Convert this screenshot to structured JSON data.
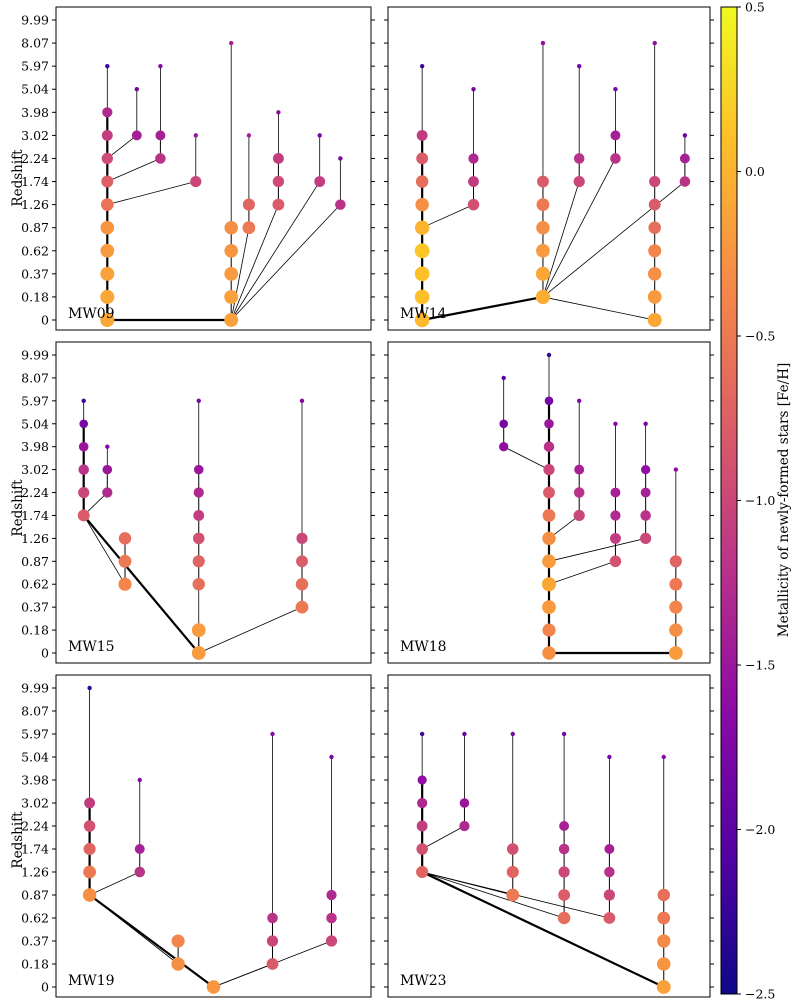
{
  "chart_data": {
    "type": "merger-tree",
    "y_axis_label": "Redshift",
    "y_ticks": [
      "9.99",
      "8.07",
      "5.97",
      "5.04",
      "3.98",
      "3.02",
      "2.24",
      "1.74",
      "1.26",
      "0.87",
      "0.62",
      "0.37",
      "0.18",
      "0"
    ],
    "colorbar": {
      "label": "Metallicity of newly-formed stars [Fe/H]",
      "ticks": [
        "0.5",
        "0.0",
        "−0.5",
        "−1.0",
        "−1.5",
        "−2.0",
        "−2.5"
      ],
      "tick_values": [
        0.5,
        0.0,
        -0.5,
        -1.0,
        -1.5,
        -2.0,
        -2.5
      ],
      "range": [
        -2.5,
        0.5
      ],
      "colormap": "plasma",
      "stops": [
        "#0d0887",
        "#5302a3",
        "#8b0aa5",
        "#b83289",
        "#db5c68",
        "#f48849",
        "#febc2a",
        "#f0f921"
      ]
    },
    "panels": [
      {
        "name": "MW09",
        "main": {
          "x": 0.14,
          "zs": [
            0.0,
            0.18,
            0.37,
            0.62,
            0.87,
            1.26,
            1.74,
            2.24,
            3.02,
            3.98
          ],
          "feh": [
            -0.1,
            -0.1,
            -0.15,
            -0.2,
            -0.25,
            -0.55,
            -0.75,
            -0.95,
            -1.1,
            -1.3
          ],
          "top": 5.97,
          "topfeh": -2.2
        },
        "branches": [
          {
            "x": 0.56,
            "zs": [
              0.0,
              0.18,
              0.37,
              0.62,
              0.87
            ],
            "feh": [
              -0.15,
              -0.15,
              -0.2,
              -0.25,
              -0.3
            ],
            "top": 8.07,
            "topfeh": -1.4
          },
          {
            "x": 0.62,
            "zs": [
              0.87,
              1.26
            ],
            "feh": [
              -0.5,
              -0.7
            ],
            "top": 3.02,
            "topfeh": -1.4
          },
          {
            "x": 0.72,
            "zs": [
              1.26,
              1.74,
              2.24
            ],
            "feh": [
              -0.8,
              -0.95,
              -1.1
            ],
            "top": 3.98,
            "topfeh": -1.6
          },
          {
            "x": 0.44,
            "zs": [
              1.74
            ],
            "feh": [
              -1.0
            ],
            "top": 3.02,
            "topfeh": -1.5
          },
          {
            "x": 0.32,
            "zs": [
              2.24,
              3.02
            ],
            "feh": [
              -1.2,
              -1.4
            ],
            "top": 5.97,
            "topfeh": -1.7
          },
          {
            "x": 0.24,
            "zs": [
              3.02
            ],
            "feh": [
              -1.4
            ],
            "top": 5.04,
            "topfeh": -1.8
          },
          {
            "x": 0.86,
            "zs": [
              1.74
            ],
            "feh": [
              -1.1
            ],
            "top": 3.02,
            "topfeh": -1.8
          },
          {
            "x": 0.93,
            "zs": [
              1.26
            ],
            "feh": [
              -1.2
            ],
            "top": 2.24,
            "topfeh": -1.8
          }
        ]
      },
      {
        "name": "MW14",
        "main": {
          "x": 0.08,
          "zs": [
            0.0,
            0.18,
            0.37,
            0.62,
            0.87,
            1.26,
            1.74,
            2.24,
            3.02
          ],
          "feh": [
            0.05,
            0.1,
            0.1,
            0.15,
            0.0,
            -0.3,
            -0.6,
            -0.8,
            -1.1
          ],
          "top": 5.97,
          "topfeh": -2.2
        },
        "branches": [
          {
            "x": 0.48,
            "zs": [
              0.18,
              0.37,
              0.62,
              0.87,
              1.26,
              1.74
            ],
            "feh": [
              -0.05,
              -0.1,
              -0.2,
              -0.3,
              -0.5,
              -0.8
            ],
            "top": 8.07,
            "topfeh": -1.6
          },
          {
            "x": 0.85,
            "zs": [
              0.0,
              0.18,
              0.37,
              0.62,
              0.87,
              1.26,
              1.74
            ],
            "feh": [
              -0.1,
              -0.2,
              -0.3,
              -0.4,
              -0.6,
              -0.8,
              -1.0
            ],
            "top": 8.07,
            "topfeh": -1.6
          },
          {
            "x": 0.25,
            "zs": [
              1.26,
              1.74,
              2.24
            ],
            "feh": [
              -0.9,
              -1.1,
              -1.3
            ],
            "top": 5.04,
            "topfeh": -1.8
          },
          {
            "x": 0.6,
            "zs": [
              1.74,
              2.24
            ],
            "feh": [
              -1.0,
              -1.2
            ],
            "top": 5.97,
            "topfeh": -1.8
          },
          {
            "x": 0.72,
            "zs": [
              2.24,
              3.02
            ],
            "feh": [
              -1.2,
              -1.4
            ],
            "top": 5.04,
            "topfeh": -1.8
          },
          {
            "x": 0.95,
            "zs": [
              1.74,
              2.24
            ],
            "feh": [
              -1.2,
              -1.4
            ],
            "top": 3.02,
            "topfeh": -1.9
          }
        ]
      },
      {
        "name": "MW15",
        "main": {
          "x": 0.06,
          "zs": [
            1.74,
            2.24,
            3.02,
            3.98,
            5.04
          ],
          "feh": [
            -0.8,
            -1.0,
            -1.2,
            -1.5,
            -1.8
          ],
          "top": 5.97,
          "topfeh": -2.2
        },
        "branches": [
          {
            "x": 0.45,
            "zs": [
              0.0,
              0.18
            ],
            "feh": [
              -0.2,
              -0.2
            ],
            "top": 0.18,
            "topfeh": -0.2
          },
          {
            "x": 0.2,
            "zs": [
              0.62,
              0.87,
              1.26
            ],
            "feh": [
              -0.4,
              -0.5,
              -0.6
            ],
            "top": 1.26,
            "topfeh": -0.6
          },
          {
            "x": 0.45,
            "zs": [
              0.62,
              0.87,
              1.26,
              1.74,
              2.24,
              3.02
            ],
            "feh": [
              -0.6,
              -0.7,
              -0.9,
              -1.1,
              -1.3,
              -1.5
            ],
            "top": 5.97,
            "topfeh": -1.8
          },
          {
            "x": 0.8,
            "zs": [
              0.37,
              0.62,
              0.87,
              1.26
            ],
            "feh": [
              -0.5,
              -0.6,
              -0.8,
              -1.0
            ],
            "top": 5.97,
            "topfeh": -1.7
          },
          {
            "x": 0.14,
            "zs": [
              2.24,
              3.02
            ],
            "feh": [
              -1.3,
              -1.5
            ],
            "top": 3.98,
            "topfeh": -1.7
          }
        ]
      },
      {
        "name": "MW18",
        "main": {
          "x": 0.5,
          "zs": [
            0.0,
            0.18,
            0.37,
            0.62,
            0.87,
            1.26,
            1.74,
            2.24,
            3.02,
            3.98,
            5.04,
            5.97
          ],
          "feh": [
            -0.3,
            -0.4,
            -0.2,
            -0.1,
            -0.2,
            -0.3,
            -0.5,
            -0.8,
            -1.0,
            -1.2,
            -1.5,
            -1.8
          ],
          "top": 9.99,
          "topfeh": -2.3
        },
        "branches": [
          {
            "x": 0.92,
            "zs": [
              0.0,
              0.18,
              0.37,
              0.62,
              0.87
            ],
            "feh": [
              -0.2,
              -0.3,
              -0.4,
              -0.5,
              -0.7
            ],
            "top": 3.02,
            "topfeh": -1.6
          },
          {
            "x": 0.6,
            "zs": [
              1.74,
              2.24,
              3.02
            ],
            "feh": [
              -1.0,
              -1.2,
              -1.4
            ],
            "top": 5.97,
            "topfeh": -1.7
          },
          {
            "x": 0.72,
            "zs": [
              0.87,
              1.26,
              1.74,
              2.24
            ],
            "feh": [
              -0.9,
              -1.1,
              -1.3,
              -1.4
            ],
            "top": 5.04,
            "topfeh": -1.7
          },
          {
            "x": 0.82,
            "zs": [
              1.26,
              1.74,
              2.24,
              3.02
            ],
            "feh": [
              -1.0,
              -1.2,
              -1.4,
              -1.6
            ],
            "top": 5.04,
            "topfeh": -1.8
          },
          {
            "x": 0.35,
            "zs": [
              3.98,
              5.04
            ],
            "feh": [
              -1.6,
              -1.8
            ],
            "top": 8.07,
            "topfeh": -2.0
          }
        ]
      },
      {
        "name": "MW19",
        "main": {
          "x": 0.08,
          "zs": [
            0.87,
            1.26,
            1.74,
            2.24,
            3.02
          ],
          "feh": [
            -0.3,
            -0.5,
            -0.7,
            -0.9,
            -1.1
          ],
          "top": 9.99,
          "topfeh": -2.3
        },
        "branches": [
          {
            "x": 0.5,
            "zs": [
              0.0
            ],
            "feh": [
              -0.25
            ],
            "top": 0.0,
            "topfeh": -0.25
          },
          {
            "x": 0.38,
            "zs": [
              0.18,
              0.37
            ],
            "feh": [
              -0.3,
              -0.4
            ],
            "top": 0.37,
            "topfeh": -0.4
          },
          {
            "x": 0.7,
            "zs": [
              0.18,
              0.37,
              0.62
            ],
            "feh": [
              -0.8,
              -1.0,
              -1.2
            ],
            "top": 5.97,
            "topfeh": -1.7
          },
          {
            "x": 0.9,
            "zs": [
              0.37,
              0.62,
              0.87
            ],
            "feh": [
              -1.0,
              -1.2,
              -1.3
            ],
            "top": 5.04,
            "topfeh": -1.8
          },
          {
            "x": 0.25,
            "zs": [
              1.26,
              1.74
            ],
            "feh": [
              -1.2,
              -1.4
            ],
            "top": 3.98,
            "topfeh": -1.7
          }
        ]
      },
      {
        "name": "MW23",
        "main": {
          "x": 0.08,
          "zs": [
            1.26,
            1.74,
            2.24,
            3.02,
            3.98
          ],
          "feh": [
            -0.7,
            -0.9,
            -1.1,
            -1.3,
            -1.6
          ],
          "top": 5.97,
          "topfeh": -2.2
        },
        "branches": [
          {
            "x": 0.88,
            "zs": [
              0.0,
              0.18,
              0.37,
              0.62,
              0.87
            ],
            "feh": [
              -0.15,
              -0.25,
              -0.35,
              -0.5,
              -0.6
            ],
            "top": 5.04,
            "topfeh": -1.7
          },
          {
            "x": 0.38,
            "zs": [
              0.87,
              1.26,
              1.74
            ],
            "feh": [
              -0.5,
              -0.7,
              -0.9
            ],
            "top": 5.97,
            "topfeh": -1.8
          },
          {
            "x": 0.55,
            "zs": [
              0.62,
              0.87,
              1.26,
              1.74,
              2.24
            ],
            "feh": [
              -0.6,
              -0.8,
              -1.0,
              -1.2,
              -1.4
            ],
            "top": 5.97,
            "topfeh": -1.8
          },
          {
            "x": 0.7,
            "zs": [
              0.62,
              0.87,
              1.26,
              1.74
            ],
            "feh": [
              -0.8,
              -1.0,
              -1.2,
              -1.4
            ],
            "top": 5.04,
            "topfeh": -1.8
          },
          {
            "x": 0.22,
            "zs": [
              2.24,
              3.02
            ],
            "feh": [
              -1.3,
              -1.5
            ],
            "top": 5.97,
            "topfeh": -1.9
          }
        ]
      }
    ]
  }
}
